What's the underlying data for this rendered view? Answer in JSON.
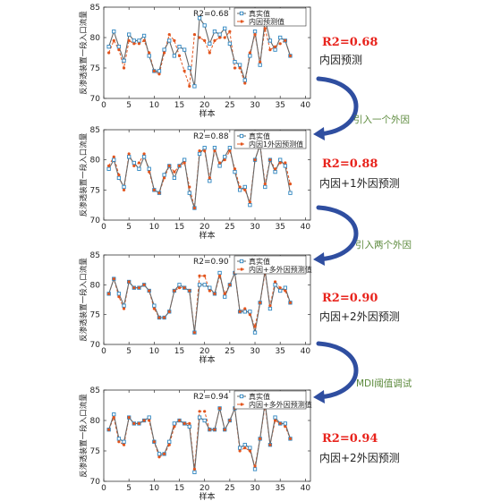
{
  "panels": [
    {
      "r2_label": "R2=0.68",
      "legend_true": "真实值",
      "legend_pred": "内因预测值",
      "side_r2": "R2=0.68",
      "side_desc": "内因预测"
    },
    {
      "r2_label": "R2=0.88",
      "legend_true": "真实值",
      "legend_pred": "内因1外因预测值",
      "side_r2": "R2=0.88",
      "side_desc": "内因+1外因预测"
    },
    {
      "r2_label": "R2=0.90",
      "legend_true": "真实值",
      "legend_pred": "内因+多外因预测值",
      "side_r2": "R2=0.90",
      "side_desc": "内因+2外因预测"
    },
    {
      "r2_label": "R2=0.94",
      "legend_true": "真实值",
      "legend_pred": "内因+多外因预测值",
      "side_r2": "R2=0.94",
      "side_desc": "内因+2外因预测"
    }
  ],
  "transitions": [
    "引入一个外因",
    "引入两个外因",
    "MDI阈值调试"
  ],
  "colors": {
    "true_series": "#2e86c1",
    "pred_series": "#e2541d",
    "arrow": "#2f4ea0",
    "r2_side": "#e8231c",
    "transition_text": "#5c8a3c"
  },
  "chart_data": [
    {
      "type": "line",
      "xlabel": "样本",
      "ylabel": "反渗透装置一段入口流量",
      "xlim": [
        0,
        41
      ],
      "ylim": [
        70,
        85
      ],
      "xticks": [
        0,
        5,
        10,
        15,
        20,
        25,
        30,
        35,
        40
      ],
      "yticks": [
        70,
        75,
        80,
        85
      ],
      "x": [
        1,
        2,
        3,
        4,
        5,
        6,
        7,
        8,
        9,
        10,
        11,
        12,
        13,
        14,
        15,
        16,
        17,
        18,
        19,
        20,
        21,
        22,
        23,
        24,
        25,
        26,
        27,
        28,
        29,
        30,
        31,
        32,
        33,
        34,
        35,
        36,
        37,
        38,
        39,
        40
      ],
      "series": [
        {
          "name": "真实值",
          "values": [
            78.5,
            81.0,
            78.5,
            76.2,
            80.5,
            79.5,
            79.5,
            80.3,
            77.0,
            74.5,
            74.5,
            78.0,
            79.5,
            77.0,
            78.5,
            78.0,
            75.0,
            72.0,
            83.2,
            82.0,
            79.0,
            81.0,
            80.5,
            81.5,
            79.0,
            76.0,
            75.5,
            73.0,
            77.0,
            81.0,
            75.5,
            83.0,
            79.5,
            78.0,
            80.0,
            79.5,
            77.0,
            null,
            null,
            null
          ]
        },
        {
          "name": "内因预测值",
          "values": [
            77.5,
            79.5,
            78.0,
            75.0,
            79.5,
            79.0,
            79.0,
            79.5,
            77.5,
            74.5,
            74.0,
            77.5,
            80.5,
            79.5,
            77.0,
            74.5,
            72.0,
            80.5,
            80.0,
            79.5,
            77.5,
            79.5,
            80.0,
            80.0,
            81.0,
            75.0,
            75.0,
            72.5,
            77.5,
            80.5,
            76.0,
            81.5,
            78.0,
            78.5,
            79.0,
            79.5,
            77.0,
            null,
            null,
            null
          ]
        }
      ]
    },
    {
      "type": "line",
      "xlabel": "样本",
      "ylabel": "反渗透装置一段入口流量",
      "xlim": [
        0,
        41
      ],
      "ylim": [
        70,
        85
      ],
      "xticks": [
        0,
        5,
        10,
        15,
        20,
        25,
        30,
        35,
        40
      ],
      "yticks": [
        70,
        75,
        80,
        85
      ],
      "x": [
        1,
        2,
        3,
        4,
        5,
        6,
        7,
        8,
        9,
        10,
        11,
        12,
        13,
        14,
        15,
        16,
        17,
        18,
        19,
        20,
        21,
        22,
        23,
        24,
        25,
        26,
        27,
        28,
        29,
        30,
        31,
        32,
        33,
        34,
        35,
        36,
        37,
        38,
        39,
        40
      ],
      "series": [
        {
          "name": "真实值",
          "values": [
            78.5,
            80.0,
            77.0,
            75.5,
            80.5,
            79.5,
            78.5,
            80.5,
            78.5,
            75.0,
            74.5,
            77.5,
            79.0,
            77.0,
            79.0,
            80.0,
            74.5,
            72.0,
            81.0,
            82.0,
            76.5,
            82.0,
            79.0,
            80.5,
            82.0,
            78.0,
            75.0,
            75.5,
            72.5,
            80.0,
            82.5,
            75.5,
            80.0,
            78.0,
            80.0,
            79.0,
            74.5,
            null,
            null,
            null
          ]
        },
        {
          "name": "内因1外因预测值",
          "values": [
            79.0,
            80.5,
            77.5,
            75.0,
            81.0,
            79.0,
            79.5,
            81.0,
            78.0,
            75.0,
            74.5,
            77.0,
            79.0,
            78.0,
            79.0,
            79.5,
            75.5,
            72.0,
            81.5,
            81.5,
            77.0,
            81.5,
            79.5,
            80.0,
            81.5,
            78.5,
            75.5,
            75.0,
            73.0,
            80.0,
            82.5,
            76.0,
            80.0,
            78.5,
            79.5,
            79.5,
            76.0,
            null,
            null,
            null
          ]
        }
      ]
    },
    {
      "type": "line",
      "xlabel": "样本",
      "ylabel": "反渗透装置一段入口流量",
      "xlim": [
        0,
        41
      ],
      "ylim": [
        70,
        85
      ],
      "xticks": [
        0,
        5,
        10,
        15,
        20,
        25,
        30,
        35,
        40
      ],
      "yticks": [
        70,
        75,
        80,
        85
      ],
      "x": [
        1,
        2,
        3,
        4,
        5,
        6,
        7,
        8,
        9,
        10,
        11,
        12,
        13,
        14,
        15,
        16,
        17,
        18,
        19,
        20,
        21,
        22,
        23,
        24,
        25,
        26,
        27,
        28,
        29,
        30,
        31,
        32,
        33,
        34,
        35,
        36,
        37,
        38,
        39,
        40
      ],
      "series": [
        {
          "name": "真实值",
          "values": [
            78.5,
            81.0,
            78.5,
            76.5,
            80.5,
            79.5,
            79.5,
            80.0,
            79.0,
            76.5,
            74.5,
            74.5,
            75.5,
            79.0,
            80.0,
            79.5,
            79.0,
            72.0,
            80.0,
            80.0,
            79.5,
            78.5,
            82.0,
            78.0,
            80.0,
            82.0,
            75.5,
            75.5,
            75.5,
            72.0,
            77.0,
            82.5,
            76.0,
            80.0,
            79.0,
            79.5,
            77.0,
            null,
            null,
            null
          ]
        },
        {
          "name": "内因+多外因预测值",
          "values": [
            78.5,
            81.0,
            78.0,
            76.0,
            80.5,
            79.5,
            79.5,
            80.0,
            79.0,
            76.0,
            74.5,
            74.5,
            75.5,
            79.0,
            79.5,
            79.5,
            79.0,
            72.0,
            81.5,
            81.5,
            79.0,
            78.5,
            81.5,
            78.5,
            80.0,
            82.0,
            75.5,
            76.0,
            75.0,
            73.0,
            77.0,
            82.0,
            76.5,
            80.5,
            79.5,
            79.0,
            77.0,
            null,
            null,
            null
          ]
        }
      ]
    },
    {
      "type": "line",
      "xlabel": "样本",
      "ylabel": "反渗透装置一段入口流量",
      "xlim": [
        0,
        41
      ],
      "ylim": [
        70,
        85
      ],
      "xticks": [
        0,
        5,
        10,
        15,
        20,
        25,
        30,
        35,
        40
      ],
      "yticks": [
        70,
        75,
        80,
        85
      ],
      "x": [
        1,
        2,
        3,
        4,
        5,
        6,
        7,
        8,
        9,
        10,
        11,
        12,
        13,
        14,
        15,
        16,
        17,
        18,
        19,
        20,
        21,
        22,
        23,
        24,
        25,
        26,
        27,
        28,
        29,
        30,
        31,
        32,
        33,
        34,
        35,
        36,
        37,
        38,
        39,
        40
      ],
      "series": [
        {
          "name": "真实值",
          "values": [
            78.5,
            81.0,
            77.0,
            76.5,
            80.5,
            79.5,
            79.5,
            80.0,
            80.5,
            76.5,
            74.5,
            74.5,
            76.5,
            79.5,
            80.0,
            79.5,
            79.0,
            71.5,
            80.5,
            80.0,
            78.5,
            78.5,
            82.0,
            78.5,
            80.0,
            82.0,
            75.5,
            76.0,
            75.5,
            72.0,
            77.0,
            83.0,
            76.0,
            80.5,
            79.5,
            79.5,
            77.0,
            null,
            null,
            null
          ]
        },
        {
          "name": "内因+多外因预测值",
          "values": [
            78.5,
            80.5,
            76.5,
            76.0,
            80.5,
            79.5,
            79.5,
            80.0,
            80.0,
            76.5,
            74.0,
            74.5,
            76.0,
            79.0,
            80.0,
            79.5,
            79.5,
            72.0,
            81.5,
            81.5,
            78.5,
            78.5,
            82.0,
            78.5,
            80.0,
            82.0,
            75.0,
            75.5,
            75.0,
            72.5,
            77.0,
            82.5,
            76.0,
            80.0,
            79.5,
            79.0,
            77.0,
            null,
            null,
            null
          ]
        }
      ]
    }
  ]
}
